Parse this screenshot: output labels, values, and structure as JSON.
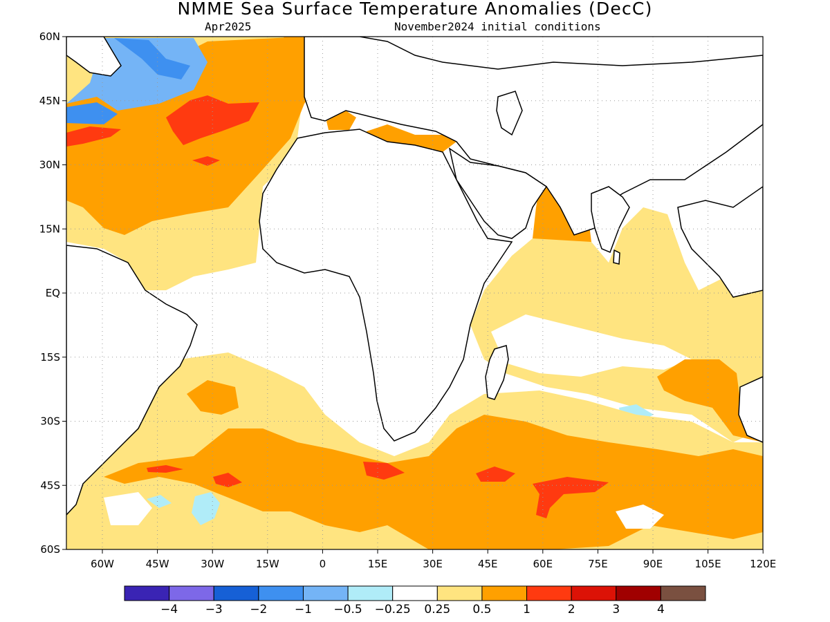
{
  "title": "NMME Sea Surface Temperature Anomalies (DecC)",
  "valid_month": "Apr2025",
  "init_label": "November2024 initial conditions",
  "axes": {
    "lon_labels": [
      "60W",
      "45W",
      "30W",
      "15W",
      "0",
      "15E",
      "30E",
      "45E",
      "60E",
      "75E",
      "90E",
      "105E",
      "120E"
    ],
    "lat_labels": [
      "60N",
      "45N",
      "30N",
      "15N",
      "EQ",
      "15S",
      "30S",
      "45S",
      "60S"
    ]
  },
  "colorbar": {
    "colors": [
      "#3a24b4",
      "#7d68e8",
      "#1660d6",
      "#3e90f0",
      "#74b4f6",
      "#b0ecf8",
      "#ffffff",
      "#ffe480",
      "#ffa000",
      "#ff3a10",
      "#dc1206",
      "#a00000",
      "#7a5040"
    ],
    "tick_labels": [
      "−4",
      "−3",
      "−2",
      "−1",
      "−0.5",
      "−0.25",
      "0.25",
      "0.5",
      "1",
      "2",
      "3",
      "4"
    ]
  }
}
